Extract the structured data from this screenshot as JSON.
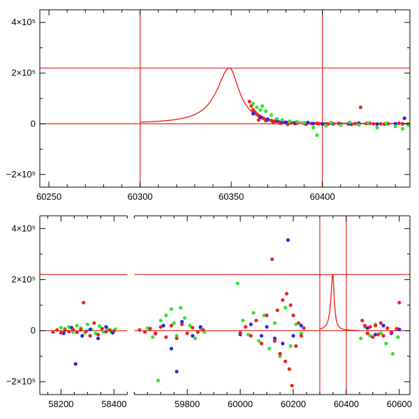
{
  "chart_data": [
    {
      "type": "scatter",
      "panel": "top",
      "title": "",
      "xlabel": "",
      "ylabel": "",
      "xlim": [
        60245,
        60448
      ],
      "ylim": [
        -250000,
        450000
      ],
      "x_ticks": [
        "60250",
        "60300",
        "60350",
        "60400"
      ],
      "x_tick_values": [
        60250,
        60300,
        60350,
        60400
      ],
      "y_ticks": [
        "−2×10⁵",
        "0",
        "2×10⁵",
        "4×10⁵"
      ],
      "y_tick_values": [
        -200000,
        0,
        200000,
        400000
      ],
      "reference_lines": {
        "horizontal": [
          0,
          220000
        ],
        "vertical": [
          60300,
          60400
        ]
      },
      "model_curve": {
        "color": "#e8251c",
        "peak_x": 60349,
        "peak_y": 220000,
        "x_start": 60300,
        "x_end": 60448
      },
      "series": [
        {
          "color": "#e8251c",
          "points": [
            [
              60360,
              88000
            ],
            [
              60361,
              70000
            ],
            [
              60362,
              55000
            ],
            [
              60363,
              46000
            ],
            [
              60364,
              38000
            ],
            [
              60365,
              32000
            ],
            [
              60366,
              28000
            ],
            [
              60367,
              24000
            ],
            [
              60368,
              20000
            ],
            [
              60370,
              16000
            ],
            [
              60372,
              13000
            ],
            [
              60374,
              10000
            ],
            [
              60376,
              8000
            ],
            [
              60378,
              6000
            ],
            [
              60380,
              5000
            ],
            [
              60383,
              3500
            ],
            [
              60386,
              2500
            ],
            [
              60390,
              1500
            ],
            [
              60394,
              1000
            ],
            [
              60398,
              500
            ],
            [
              60402,
              300
            ],
            [
              60406,
              0
            ],
            [
              60410,
              -500
            ],
            [
              60414,
              0
            ],
            [
              60418,
              500
            ],
            [
              60421,
              65000
            ],
            [
              60424,
              1000
            ],
            [
              60428,
              0
            ],
            [
              60432,
              -500
            ],
            [
              60436,
              500
            ],
            [
              60440,
              0
            ],
            [
              60444,
              0
            ],
            [
              60447,
              -1000
            ],
            [
              60365,
              15000
            ],
            [
              60369,
              12000
            ],
            [
              60373,
              5000
            ],
            [
              60377,
              2000
            ],
            [
              60381,
              -2000
            ],
            [
              60385,
              1000
            ],
            [
              60391,
              -1500
            ],
            [
              60397,
              2000
            ],
            [
              60403,
              -1000
            ],
            [
              60409,
              1500
            ],
            [
              60416,
              -2000
            ],
            [
              60426,
              2500
            ],
            [
              60434,
              -1500
            ],
            [
              60442,
              2000
            ]
          ]
        },
        {
          "color": "#2626e6",
          "points": [
            [
              60362,
              40000
            ],
            [
              60366,
              25000
            ],
            [
              60370,
              18000
            ],
            [
              60375,
              12000
            ],
            [
              60380,
              6000
            ],
            [
              60385,
              4000
            ],
            [
              60390,
              2000
            ],
            [
              60395,
              1000
            ],
            [
              60400,
              -1000
            ],
            [
              60405,
              2000
            ],
            [
              60410,
              -2000
            ],
            [
              60415,
              0
            ],
            [
              60420,
              3000
            ],
            [
              60425,
              2000
            ],
            [
              60430,
              -1000
            ],
            [
              60435,
              1500
            ],
            [
              60440,
              500
            ],
            [
              60445,
              22000
            ],
            [
              60378,
              8000
            ],
            [
              60392,
              5000
            ]
          ]
        },
        {
          "color": "#2ee62e",
          "points": [
            [
              60362,
              80000
            ],
            [
              60364,
              65000
            ],
            [
              60366,
              55000
            ],
            [
              60367,
              70000
            ],
            [
              60369,
              50000
            ],
            [
              60372,
              35000
            ],
            [
              60375,
              20000
            ],
            [
              60378,
              15000
            ],
            [
              60382,
              10000
            ],
            [
              60386,
              8000
            ],
            [
              60390,
              4000
            ],
            [
              60395,
              -15000
            ],
            [
              60397,
              -45000
            ],
            [
              60402,
              -8000
            ],
            [
              60405,
              5000
            ],
            [
              60410,
              -5000
            ],
            [
              60415,
              6000
            ],
            [
              60420,
              -4000
            ],
            [
              60425,
              3000
            ],
            [
              60430,
              -15000
            ],
            [
              60435,
              2000
            ],
            [
              60440,
              -10000
            ],
            [
              60444,
              -20000
            ],
            [
              60447,
              -5000
            ]
          ]
        }
      ]
    },
    {
      "type": "scatter",
      "panel": "bottom",
      "title": "",
      "xlabel": "",
      "ylabel": "",
      "xlim": [
        58120,
        60640
      ],
      "ylim": [
        -250000,
        450000
      ],
      "x_breaks": [
        {
          "left_max": 58450,
          "right_min": 59600
        }
      ],
      "x_ticks": [
        "58200",
        "58400",
        "59800",
        "60000",
        "60200",
        "60400",
        "60600"
      ],
      "x_tick_values": [
        58200,
        58400,
        59800,
        60000,
        60200,
        60400,
        60600
      ],
      "y_ticks": [
        "−2×10⁵",
        "0",
        "2×10⁵",
        "4×10⁵"
      ],
      "y_tick_values": [
        -200000,
        0,
        200000,
        400000
      ],
      "reference_lines": {
        "horizontal": [
          0,
          220000
        ],
        "vertical": [
          60300,
          60400
        ]
      },
      "model_curve": {
        "color": "#e8251c",
        "peak_x": 60349,
        "peak_y": 220000,
        "x_start": 60300,
        "x_end": 60448
      },
      "series": [
        {
          "color": "#2ee62e",
          "points": [
            [
              58200,
              12000
            ],
            [
              58215,
              8000
            ],
            [
              58230,
              15000
            ],
            [
              58245,
              -5000
            ],
            [
              58260,
              20000
            ],
            [
              58275,
              10000
            ],
            [
              58290,
              -8000
            ],
            [
              58300,
              25000
            ],
            [
              58315,
              5000
            ],
            [
              58330,
              -10000
            ],
            [
              58345,
              18000
            ],
            [
              58360,
              -5000
            ],
            [
              58375,
              8000
            ],
            [
              58390,
              -3000
            ],
            [
              58405,
              6000
            ],
            [
              59650,
              10000
            ],
            [
              59670,
              -25000
            ],
            [
              59690,
              -195000
            ],
            [
              59700,
              40000
            ],
            [
              59720,
              60000
            ],
            [
              59740,
              85000
            ],
            [
              59750,
              30000
            ],
            [
              59760,
              -20000
            ],
            [
              59775,
              90000
            ],
            [
              59790,
              50000
            ],
            [
              59810,
              20000
            ],
            [
              59830,
              -30000
            ],
            [
              59850,
              10000
            ],
            [
              59865,
              -5000
            ],
            [
              59990,
              185000
            ],
            [
              60010,
              40000
            ],
            [
              60030,
              -15000
            ],
            [
              60050,
              70000
            ],
            [
              60070,
              -40000
            ],
            [
              60090,
              60000
            ],
            [
              60110,
              -70000
            ],
            [
              60130,
              30000
            ],
            [
              60150,
              -100000
            ],
            [
              60170,
              90000
            ],
            [
              60190,
              -60000
            ],
            [
              60210,
              25000
            ],
            [
              60230,
              -10000
            ],
            [
              60455,
              -30000
            ],
            [
              60470,
              15000
            ],
            [
              60490,
              -20000
            ],
            [
              60510,
              25000
            ],
            [
              60530,
              -10000
            ],
            [
              60550,
              -50000
            ],
            [
              60575,
              -90000
            ],
            [
              60595,
              -25000
            ]
          ]
        },
        {
          "color": "#2626e6",
          "points": [
            [
              58210,
              -10000
            ],
            [
              58240,
              12000
            ],
            [
              58255,
              -130000
            ],
            [
              58280,
              -20000
            ],
            [
              58310,
              5000
            ],
            [
              58340,
              -30000
            ],
            [
              58370,
              15000
            ],
            [
              58395,
              -8000
            ],
            [
              59680,
              -10000
            ],
            [
              59710,
              20000
            ],
            [
              59740,
              -70000
            ],
            [
              59760,
              -160000
            ],
            [
              59780,
              35000
            ],
            [
              59820,
              -20000
            ],
            [
              59850,
              15000
            ],
            [
              60000,
              -15000
            ],
            [
              60040,
              25000
            ],
            [
              60080,
              -20000
            ],
            [
              60100,
              15000
            ],
            [
              60130,
              -30000
            ],
            [
              60160,
              -50000
            ],
            [
              60180,
              355000
            ],
            [
              60200,
              -20000
            ],
            [
              60230,
              20000
            ],
            [
              60480,
              10000
            ],
            [
              60510,
              -15000
            ],
            [
              60540,
              20000
            ],
            [
              60570,
              -10000
            ],
            [
              60600,
              5000
            ]
          ]
        },
        {
          "color": "#e8251c",
          "points": [
            [
              58170,
              -5000
            ],
            [
              58185,
              3000
            ],
            [
              58200,
              -8000
            ],
            [
              58215,
              2000
            ],
            [
              58230,
              -3000
            ],
            [
              58245,
              5000
            ],
            [
              58260,
              -6000
            ],
            [
              58275,
              4000
            ],
            [
              58285,
              110000
            ],
            [
              58295,
              -2000
            ],
            [
              58310,
              -20000
            ],
            [
              58325,
              30000
            ],
            [
              58340,
              -15000
            ],
            [
              58355,
              8000
            ],
            [
              58370,
              -4000
            ],
            [
              58385,
              2000
            ],
            [
              58400,
              -1000
            ],
            [
              59620,
              3000
            ],
            [
              59640,
              -5000
            ],
            [
              59660,
              8000
            ],
            [
              59680,
              -12000
            ],
            [
              59700,
              15000
            ],
            [
              59720,
              -25000
            ],
            [
              59740,
              20000
            ],
            [
              59760,
              -30000
            ],
            [
              59780,
              25000
            ],
            [
              59800,
              -10000
            ],
            [
              59820,
              12000
            ],
            [
              59840,
              -5000
            ],
            [
              59860,
              3000
            ],
            [
              60000,
              -8000
            ],
            [
              60020,
              15000
            ],
            [
              60040,
              -20000
            ],
            [
              60060,
              40000
            ],
            [
              60080,
              -50000
            ],
            [
              60100,
              60000
            ],
            [
              60120,
              280000
            ],
            [
              60130,
              -40000
            ],
            [
              60140,
              80000
            ],
            [
              60150,
              -90000
            ],
            [
              60160,
              120000
            ],
            [
              60170,
              -120000
            ],
            [
              60175,
              145000
            ],
            [
              60185,
              -150000
            ],
            [
              60190,
              100000
            ],
            [
              60195,
              -215000
            ],
            [
              60200,
              60000
            ],
            [
              60210,
              -60000
            ],
            [
              60220,
              30000
            ],
            [
              60230,
              -20000
            ],
            [
              60240,
              10000
            ],
            [
              60460,
              40000
            ],
            [
              60470,
              20000
            ],
            [
              60480,
              -10000
            ],
            [
              60490,
              15000
            ],
            [
              60500,
              -25000
            ],
            [
              60510,
              20000
            ],
            [
              60520,
              -15000
            ],
            [
              60530,
              30000
            ],
            [
              60540,
              -20000
            ],
            [
              60555,
              10000
            ],
            [
              60570,
              -5000
            ],
            [
              60590,
              8000
            ],
            [
              60600,
              110000
            ]
          ]
        }
      ]
    }
  ]
}
